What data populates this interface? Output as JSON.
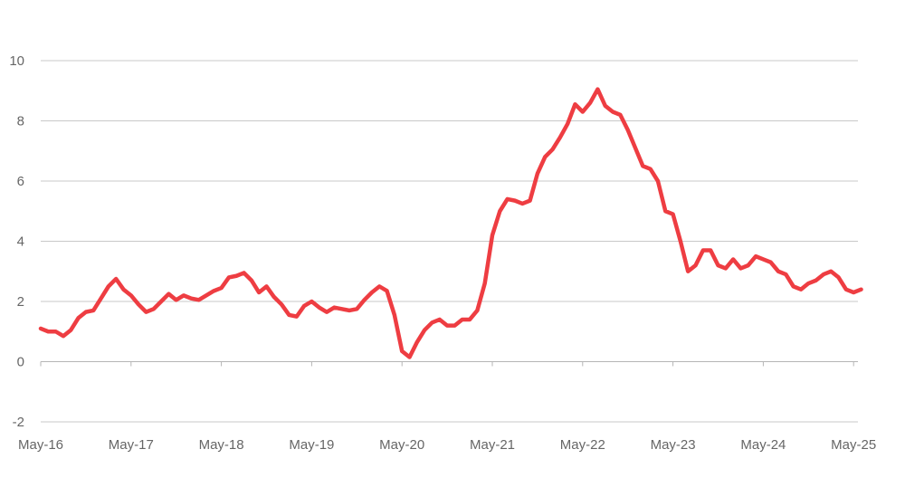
{
  "colors": {
    "series": "#ee3d42",
    "grid": "#c9c9c9",
    "tick_text": "#666666"
  },
  "chart_data": {
    "type": "line",
    "title": "",
    "xlabel": "",
    "ylabel": "",
    "ylim": [
      -2,
      10
    ],
    "yticks": [
      -2,
      0,
      2,
      4,
      6,
      8,
      10
    ],
    "ytick_labels": [
      "-2",
      "0",
      "2",
      "4",
      "6",
      "8",
      "10"
    ],
    "grid": true,
    "legend": "none",
    "xtick_labels": [
      "May-16",
      "May-17",
      "May-18",
      "May-19",
      "May-20",
      "May-21",
      "May-22",
      "May-23",
      "May-24",
      "May-25"
    ],
    "x_start": "2016-05",
    "x_step": "1 month",
    "series": [
      {
        "color": "#ee3d42",
        "x": [
          "2016-05",
          "2016-06",
          "2016-07",
          "2016-08",
          "2016-09",
          "2016-10",
          "2016-11",
          "2016-12",
          "2017-01",
          "2017-02",
          "2017-03",
          "2017-04",
          "2017-05",
          "2017-06",
          "2017-07",
          "2017-08",
          "2017-09",
          "2017-10",
          "2017-11",
          "2017-12",
          "2018-01",
          "2018-02",
          "2018-03",
          "2018-04",
          "2018-05",
          "2018-06",
          "2018-07",
          "2018-08",
          "2018-09",
          "2018-10",
          "2018-11",
          "2018-12",
          "2019-01",
          "2019-02",
          "2019-03",
          "2019-04",
          "2019-05",
          "2019-06",
          "2019-07",
          "2019-08",
          "2019-09",
          "2019-10",
          "2019-11",
          "2019-12",
          "2020-01",
          "2020-02",
          "2020-03",
          "2020-04",
          "2020-05",
          "2020-06",
          "2020-07",
          "2020-08",
          "2020-09",
          "2020-10",
          "2020-11",
          "2020-12",
          "2021-01",
          "2021-02",
          "2021-03",
          "2021-04",
          "2021-05",
          "2021-06",
          "2021-07",
          "2021-08",
          "2021-09",
          "2021-10",
          "2021-11",
          "2021-12",
          "2022-01",
          "2022-02",
          "2022-03",
          "2022-04",
          "2022-05",
          "2022-06",
          "2022-07",
          "2022-08",
          "2022-09",
          "2022-10",
          "2022-11",
          "2022-12",
          "2023-01",
          "2023-02",
          "2023-03",
          "2023-04",
          "2023-05",
          "2023-06",
          "2023-07",
          "2023-08",
          "2023-09",
          "2023-10",
          "2023-11",
          "2023-12",
          "2024-01",
          "2024-02",
          "2024-03",
          "2024-04",
          "2024-05",
          "2024-06",
          "2024-07",
          "2024-08",
          "2024-09",
          "2024-10",
          "2024-11",
          "2024-12",
          "2025-01",
          "2025-02",
          "2025-03",
          "2025-04",
          "2025-05",
          "2025-06"
        ],
        "values": [
          1.1,
          1.0,
          1.0,
          0.85,
          1.05,
          1.45,
          1.65,
          1.7,
          2.1,
          2.5,
          2.75,
          2.4,
          2.2,
          1.9,
          1.65,
          1.75,
          2.0,
          2.25,
          2.05,
          2.2,
          2.1,
          2.05,
          2.2,
          2.35,
          2.45,
          2.8,
          2.85,
          2.95,
          2.7,
          2.3,
          2.5,
          2.15,
          1.9,
          1.55,
          1.5,
          1.85,
          2.0,
          1.8,
          1.65,
          1.8,
          1.75,
          1.7,
          1.75,
          2.05,
          2.3,
          2.5,
          2.35,
          1.55,
          0.35,
          0.15,
          0.65,
          1.05,
          1.3,
          1.4,
          1.2,
          1.2,
          1.4,
          1.4,
          1.7,
          2.6,
          4.2,
          5.0,
          5.4,
          5.35,
          5.25,
          5.35,
          6.25,
          6.8,
          7.05,
          7.45,
          7.9,
          8.55,
          8.3,
          8.6,
          9.05,
          8.5,
          8.3,
          8.2,
          7.7,
          7.1,
          6.5,
          6.4,
          6.0,
          5.0,
          4.9,
          4.0,
          3.0,
          3.2,
          3.7,
          3.7,
          3.2,
          3.1,
          3.4,
          3.1,
          3.2,
          3.5,
          3.4,
          3.3,
          3.0,
          2.9,
          2.5,
          2.4,
          2.6,
          2.7,
          2.9,
          3.0,
          2.8,
          2.4,
          2.3,
          2.4
        ]
      }
    ]
  }
}
